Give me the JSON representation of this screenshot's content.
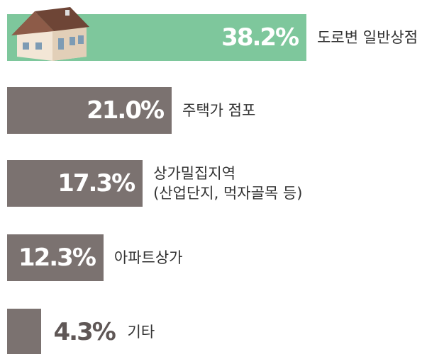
{
  "chart_data": {
    "type": "bar",
    "orientation": "horizontal",
    "categories": [
      "도로변 일반상점",
      "주택가 점포",
      "상가밀집지역\n(산업단지, 먹자골목 등)",
      "아파트상가",
      "기타"
    ],
    "values": [
      38.2,
      21.0,
      17.3,
      12.3,
      4.3
    ],
    "value_labels": [
      "38.2%",
      "21.0%",
      "17.3%",
      "12.3%",
      "4.3%"
    ],
    "colors": [
      "#7ec79c",
      "#7b7270",
      "#7b7270",
      "#7b7270",
      "#7b7270"
    ],
    "xlim": [
      0,
      40
    ]
  }
}
